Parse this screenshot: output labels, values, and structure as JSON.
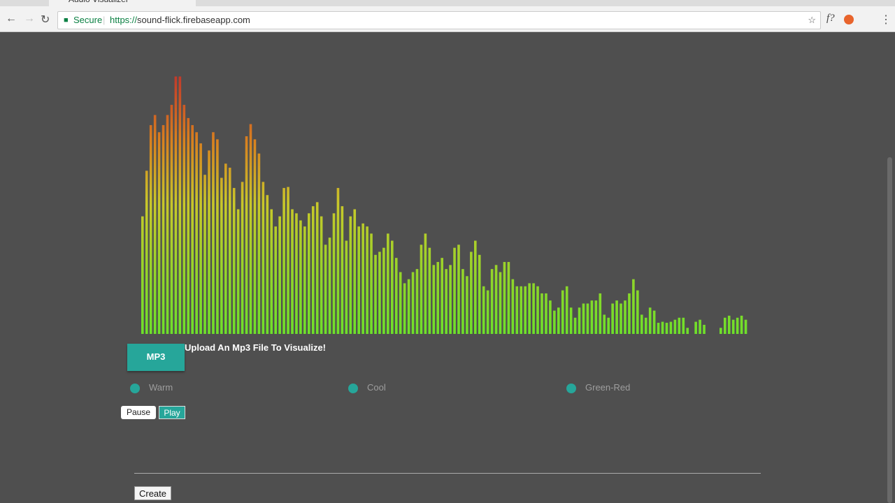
{
  "browser": {
    "tab_title": "Audio Visualizer",
    "secure_label": "Secure",
    "url_scheme": "https://",
    "url_host": "sound-flick.firebaseapp.com",
    "extension_label": "f?"
  },
  "visualizer": {
    "levels": [
      116,
      161,
      206,
      216,
      199,
      206,
      216,
      226,
      254,
      254,
      226,
      213,
      206,
      199,
      188,
      157,
      181,
      199,
      192,
      154,
      168,
      164,
      144,
      123,
      150,
      195,
      207,
      192,
      178,
      150,
      137,
      123,
      106,
      116,
      144,
      145,
      123,
      119,
      112,
      106,
      119,
      126,
      130,
      116,
      88,
      95,
      119,
      144,
      126,
      92,
      116,
      123,
      106,
      109,
      106,
      99,
      78,
      81,
      85,
      99,
      92,
      75,
      61,
      50,
      54,
      61,
      64,
      88,
      99,
      85,
      68,
      71,
      75,
      64,
      68,
      85,
      88,
      64,
      57,
      81,
      92,
      78,
      47,
      43,
      64,
      68,
      61,
      71,
      71,
      54,
      47,
      47,
      47,
      50,
      50,
      47,
      40,
      40,
      33,
      23,
      26,
      43,
      47,
      26,
      16,
      26,
      30,
      30,
      33,
      33,
      40,
      19,
      16,
      30,
      33,
      30,
      33,
      40,
      54,
      43,
      19,
      16,
      26,
      23,
      11,
      12,
      11,
      12,
      14,
      16,
      16,
      6,
      0,
      12,
      14,
      9,
      0,
      0,
      0,
      6,
      16,
      18,
      14,
      16,
      18,
      14
    ]
  },
  "upload": {
    "button": "MP3",
    "prompt": "Upload An Mp3 File To Visualize!"
  },
  "themes": [
    "Warm",
    "Cool",
    "Green-Red"
  ],
  "controls": {
    "pause": "Pause",
    "play": "Play",
    "create": "Create"
  }
}
